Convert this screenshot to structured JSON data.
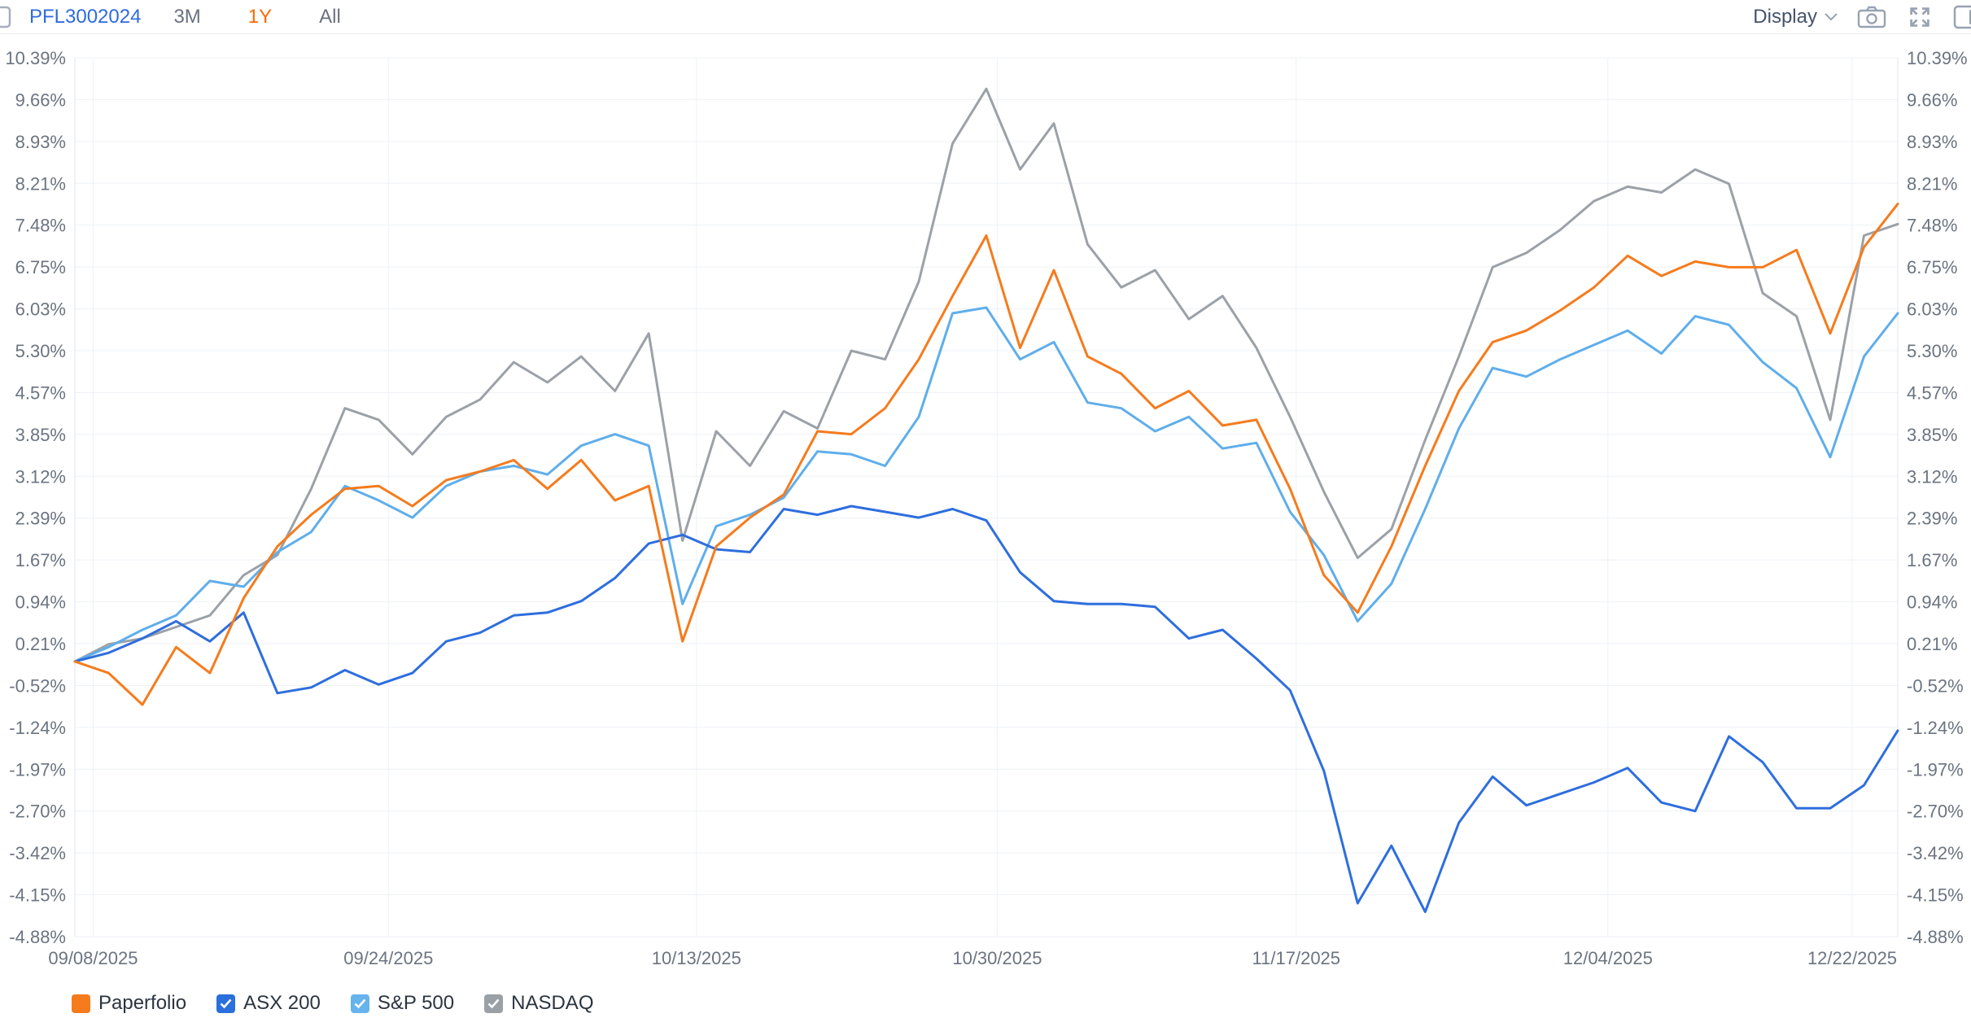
{
  "header": {
    "portfolio_id": "PFL3002024",
    "tabs": [
      {
        "label": "3M",
        "active": false
      },
      {
        "label": "1Y",
        "active": true
      },
      {
        "label": "All",
        "active": false
      }
    ],
    "display_label": "Display",
    "active_tab_color": "#fe6a00",
    "link_color": "#2e6bdd",
    "icon_names": [
      "panel-left-icon",
      "chevron-down-icon",
      "camera-icon",
      "expand-icon",
      "panel-right-icon"
    ]
  },
  "chart_data": {
    "type": "line",
    "title": "",
    "xlabel": "",
    "ylabel": "",
    "grid": true,
    "legend_position": "bottom",
    "ylim": [
      -4.88,
      10.39
    ],
    "y_ticks": [
      "10.39%",
      "9.66%",
      "8.93%",
      "8.21%",
      "7.48%",
      "6.75%",
      "6.03%",
      "5.30%",
      "4.57%",
      "3.85%",
      "3.12%",
      "2.39%",
      "1.67%",
      "0.94%",
      "0.21%",
      "-0.52%",
      "-1.24%",
      "-1.97%",
      "-2.70%",
      "-3.42%",
      "-4.15%",
      "-4.88%"
    ],
    "x_ticks": [
      {
        "label": "09/08/2025",
        "f": 0.01
      },
      {
        "label": "09/24/2025",
        "f": 0.172
      },
      {
        "label": "10/13/2025",
        "f": 0.341
      },
      {
        "label": "10/30/2025",
        "f": 0.506
      },
      {
        "label": "11/17/2025",
        "f": 0.67
      },
      {
        "label": "12/04/2025",
        "f": 0.841
      },
      {
        "label": "12/22/2025",
        "f": 0.975
      }
    ],
    "series": [
      {
        "id": "nasdaq",
        "name": "NASDAQ",
        "color": "#9ca1a8",
        "values": [
          -0.1,
          0.2,
          0.3,
          0.5,
          0.7,
          1.4,
          1.75,
          2.9,
          4.3,
          4.1,
          3.5,
          4.15,
          4.45,
          5.1,
          4.75,
          5.2,
          4.6,
          5.6,
          2.0,
          3.9,
          3.3,
          4.25,
          3.95,
          5.3,
          5.15,
          6.5,
          8.9,
          9.85,
          8.45,
          9.25,
          7.15,
          6.4,
          6.7,
          5.85,
          6.25,
          5.35,
          4.15,
          2.85,
          1.7,
          2.2,
          3.75,
          5.2,
          6.75,
          7.0,
          7.4,
          7.9,
          8.15,
          8.05,
          8.45,
          8.2,
          6.3,
          5.9,
          4.1,
          7.3,
          7.5
        ]
      },
      {
        "id": "sp500",
        "name": "S&P 500",
        "color": "#5faeeb",
        "values": [
          -0.1,
          0.15,
          0.45,
          0.7,
          1.3,
          1.2,
          1.8,
          2.15,
          2.95,
          2.7,
          2.4,
          2.95,
          3.2,
          3.3,
          3.15,
          3.65,
          3.85,
          3.65,
          0.9,
          2.25,
          2.45,
          2.75,
          3.55,
          3.5,
          3.3,
          4.15,
          5.95,
          6.05,
          5.15,
          5.45,
          4.4,
          4.3,
          3.9,
          4.15,
          3.6,
          3.7,
          2.5,
          1.75,
          0.6,
          1.25,
          2.55,
          3.95,
          5.0,
          4.85,
          5.15,
          5.4,
          5.65,
          5.25,
          5.9,
          5.75,
          5.1,
          4.65,
          3.45,
          5.2,
          5.95
        ]
      },
      {
        "id": "asx200",
        "name": "ASX 200",
        "color": "#2e6ede",
        "values": [
          -0.1,
          0.05,
          0.3,
          0.6,
          0.25,
          0.75,
          -0.65,
          -0.55,
          -0.25,
          -0.5,
          -0.3,
          0.25,
          0.4,
          0.7,
          0.75,
          0.95,
          1.35,
          1.95,
          2.1,
          1.85,
          1.8,
          2.55,
          2.45,
          2.6,
          2.5,
          2.4,
          2.55,
          2.35,
          1.45,
          0.95,
          0.9,
          0.9,
          0.85,
          0.3,
          0.45,
          -0.05,
          -0.6,
          -2.0,
          -4.3,
          -3.3,
          -4.45,
          -2.9,
          -2.1,
          -2.6,
          -2.4,
          -2.2,
          -1.95,
          -2.55,
          -2.7,
          -1.4,
          -1.85,
          -2.65,
          -2.65,
          -2.25,
          -1.3
        ]
      },
      {
        "id": "paperfolio",
        "name": "Paperfolio",
        "color": "#f57b1d",
        "values": [
          -0.1,
          -0.3,
          -0.85,
          0.15,
          -0.3,
          1.0,
          1.9,
          2.45,
          2.9,
          2.95,
          2.6,
          3.05,
          3.2,
          3.4,
          2.9,
          3.4,
          2.7,
          2.95,
          0.25,
          1.9,
          2.4,
          2.8,
          3.9,
          3.85,
          4.3,
          5.15,
          6.25,
          7.3,
          5.35,
          6.7,
          5.2,
          4.9,
          4.3,
          4.6,
          4.0,
          4.1,
          2.9,
          1.4,
          0.75,
          1.9,
          3.3,
          4.6,
          5.45,
          5.65,
          6.0,
          6.4,
          6.95,
          6.6,
          6.85,
          6.75,
          6.75,
          7.05,
          5.6,
          7.1,
          7.85
        ]
      }
    ]
  },
  "legend": {
    "items": [
      {
        "id": "paperfolio",
        "label": "Paperfolio",
        "color": "#f57b1d",
        "checkbox": false,
        "checked": true
      },
      {
        "id": "asx200",
        "label": "ASX 200",
        "color": "#2a6fdb",
        "checkbox": true,
        "checked": true
      },
      {
        "id": "sp500",
        "label": "S&P 500",
        "color": "#66b3ee",
        "checkbox": true,
        "checked": true
      },
      {
        "id": "nasdaq",
        "label": "NASDAQ",
        "color": "#9aa0a6",
        "checkbox": true,
        "checked": true
      }
    ]
  }
}
